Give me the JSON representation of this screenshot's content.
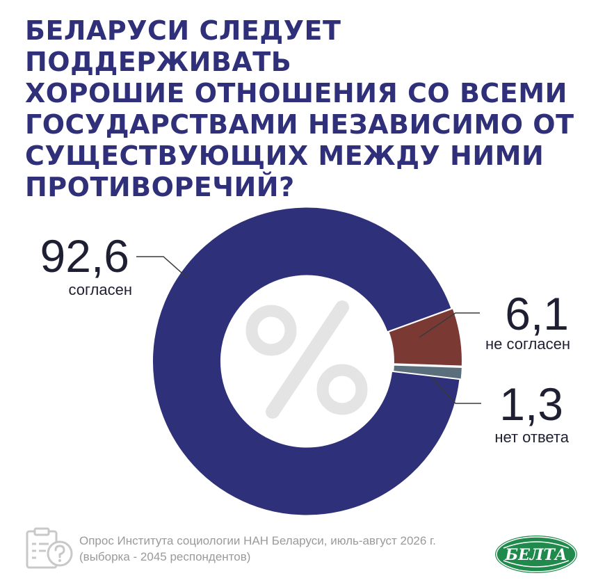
{
  "title_lines": [
    "БЕЛАРУСИ СЛЕДУЕТ ПОДДЕРЖИВАТЬ",
    "ХОРОШИЕ ОТНОШЕНИЯ СО ВСЕМИ",
    "ГОСУДАРСТВАМИ НЕЗАВИСИМО ОТ",
    "СУЩЕСТВУЮЩИХ МЕЖДУ НИМИ",
    "ПРОТИВОРЕЧИЙ?"
  ],
  "chart_data": {
    "type": "pie",
    "style": "donut",
    "center_symbol": "%",
    "slices": [
      {
        "value_label": "92,6",
        "value": 92.6,
        "label": "согласен",
        "color": "#2e3079"
      },
      {
        "value_label": "6,1",
        "value": 6.1,
        "label": "не согласен",
        "color": "#7a3a33"
      },
      {
        "value_label": "1,3",
        "value": 1.3,
        "label": "нет ответа",
        "color": "#5b6e7c"
      }
    ]
  },
  "footer": {
    "source_line1": "Опрос Института социологии НАН Беларуси, июль-август 2026 г.",
    "source_line2": "(выборка - 2045 респондентов)",
    "logo_text": "БЕЛТА",
    "icon": "clipboard-question-icon"
  },
  "colors": {
    "title": "#2f2f7a",
    "logo": "#1f8a4c",
    "footer_text": "#9a9a9a"
  }
}
